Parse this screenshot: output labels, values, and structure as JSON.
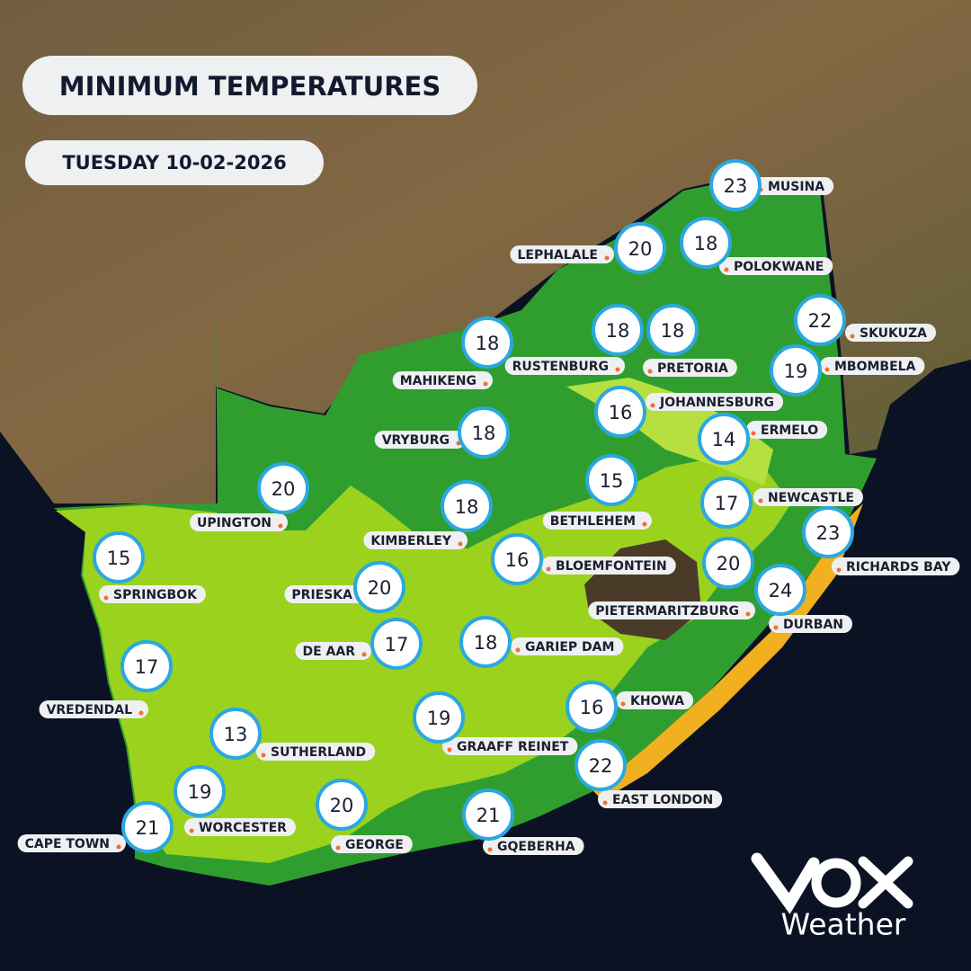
{
  "header": {
    "title": "MINIMUM TEMPERATURES",
    "date": "TUESDAY 10-02-2026"
  },
  "cities": [
    {
      "name": "MUSINA",
      "temperature": 23
    },
    {
      "name": "LEPHALALE",
      "temperature": 20
    },
    {
      "name": "POLOKWANE",
      "temperature": 18
    },
    {
      "name": "SKUKUZA",
      "temperature": 22
    },
    {
      "name": "MBOMBELA",
      "temperature": 19
    },
    {
      "name": "MAHIKENG",
      "temperature": 18
    },
    {
      "name": "RUSTENBURG",
      "temperature": 18
    },
    {
      "name": "PRETORIA",
      "temperature": 18
    },
    {
      "name": "JOHANNESBURG",
      "temperature": 16
    },
    {
      "name": "ERMELO",
      "temperature": 14
    },
    {
      "name": "VRYBURG",
      "temperature": 18
    },
    {
      "name": "UPINGTON",
      "temperature": 20
    },
    {
      "name": "KIMBERLEY",
      "temperature": 18
    },
    {
      "name": "BETHLEHEM",
      "temperature": 15
    },
    {
      "name": "NEWCASTLE",
      "temperature": 17
    },
    {
      "name": "RICHARDS BAY",
      "temperature": 23
    },
    {
      "name": "SPRINGBOK",
      "temperature": 15
    },
    {
      "name": "BLOEMFONTEIN",
      "temperature": 16
    },
    {
      "name": "PIETERMARITZBURG",
      "temperature": 20
    },
    {
      "name": "DURBAN",
      "temperature": 24
    },
    {
      "name": "PRIESKA",
      "temperature": 20
    },
    {
      "name": "DE AAR",
      "temperature": 17
    },
    {
      "name": "GARIEP DAM",
      "temperature": 18
    },
    {
      "name": "VREDENDAL",
      "temperature": 17
    },
    {
      "name": "KHOWA",
      "temperature": 16
    },
    {
      "name": "SUTHERLAND",
      "temperature": 13
    },
    {
      "name": "GRAAFF REINET",
      "temperature": 19
    },
    {
      "name": "EAST LONDON",
      "temperature": 22
    },
    {
      "name": "WORCESTER",
      "temperature": 19
    },
    {
      "name": "CAPE TOWN",
      "temperature": 21
    },
    {
      "name": "GEORGE",
      "temperature": 20
    },
    {
      "name": "GQEBERHA",
      "temperature": 21
    }
  ],
  "logo": {
    "text": "Weather"
  }
}
